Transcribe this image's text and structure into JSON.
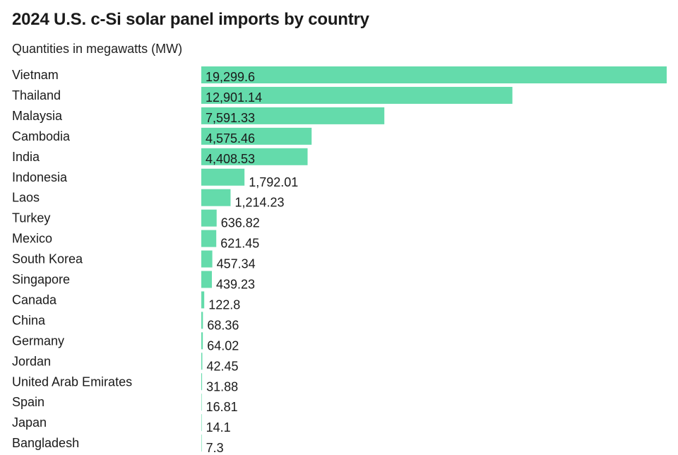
{
  "chart_data": {
    "type": "bar",
    "orientation": "horizontal",
    "title": "2024 U.S. c-Si solar panel imports by country",
    "subtitle": "Quantities in megawatts (MW)",
    "bar_color": "#64dbab",
    "label_color": "#1a1a1a",
    "categories": [
      "Vietnam",
      "Thailand",
      "Malaysia",
      "Cambodia",
      "India",
      "Indonesia",
      "Laos",
      "Turkey",
      "Mexico",
      "South Korea",
      "Singapore",
      "Canada",
      "China",
      "Germany",
      "Jordan",
      "United Arab Emirates",
      "Spain",
      "Japan",
      "Bangladesh"
    ],
    "values": [
      19299.6,
      12901.14,
      7591.33,
      4575.46,
      4408.53,
      1792.01,
      1214.23,
      636.82,
      621.45,
      457.34,
      439.23,
      122.8,
      68.36,
      64.02,
      42.45,
      31.88,
      16.81,
      14.1,
      7.3
    ],
    "value_labels": [
      "19,299.6",
      "12,901.14",
      "7,591.33",
      "4,575.46",
      "4,408.53",
      "1,792.01",
      "1,214.23",
      "636.82",
      "621.45",
      "457.34",
      "439.23",
      "122.8",
      "68.36",
      "64.02",
      "42.45",
      "31.88",
      "16.81",
      "14.1",
      "7.3"
    ],
    "xlim": [
      0,
      19299.6
    ]
  }
}
